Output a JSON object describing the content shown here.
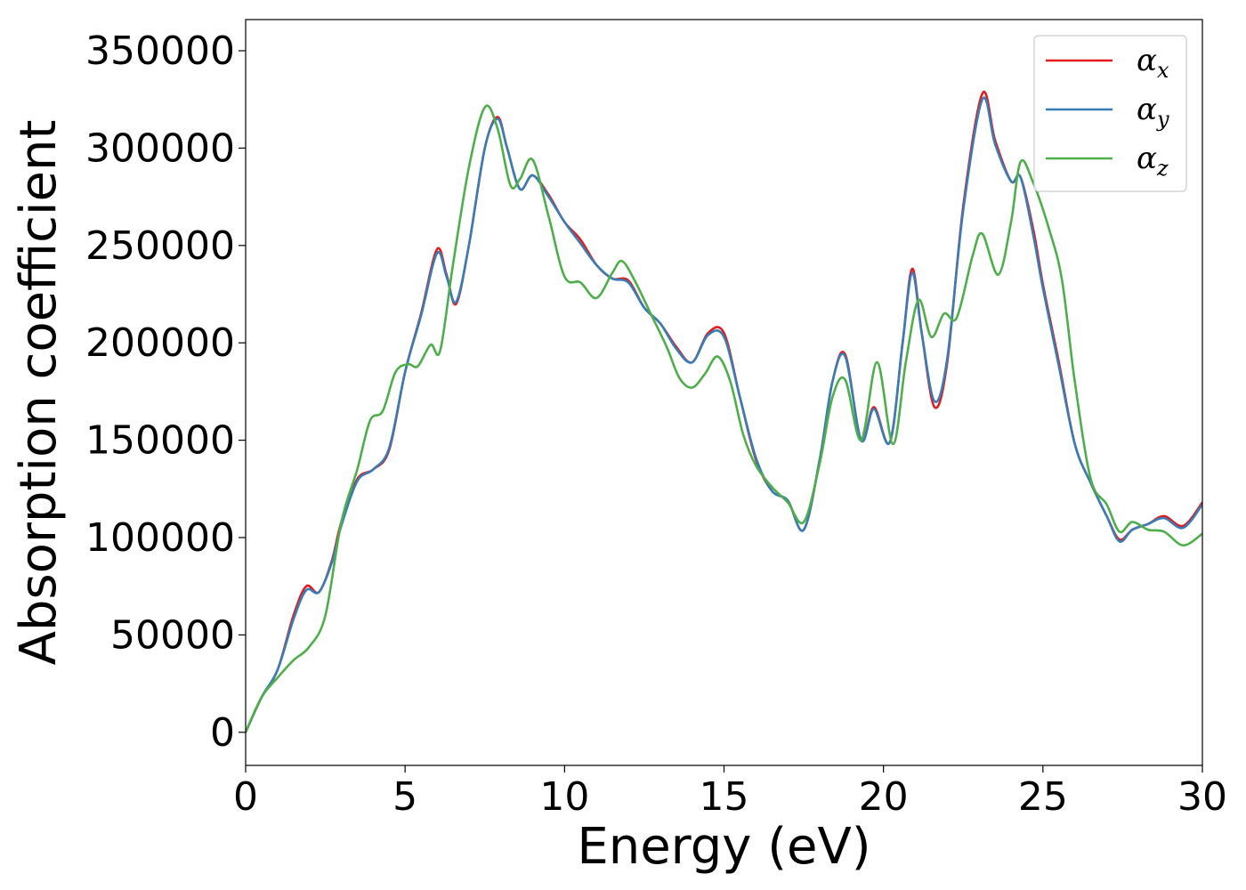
{
  "chart_data": {
    "type": "line",
    "title": "",
    "xlabel": "Energy (eV)",
    "ylabel": "Absorption coefficient",
    "xlim": [
      0,
      30
    ],
    "ylim": [
      -17000,
      366000
    ],
    "x_ticks": [
      0,
      5,
      10,
      15,
      20,
      25,
      30
    ],
    "y_ticks": [
      0,
      50000,
      100000,
      150000,
      200000,
      250000,
      300000,
      350000
    ],
    "grid": false,
    "legend_position": "top-right",
    "series": [
      {
        "name": "α",
        "subscript": "x",
        "color": "#e41a1c",
        "points": [
          [
            0,
            0
          ],
          [
            0.5,
            18000
          ],
          [
            1.0,
            32000
          ],
          [
            1.5,
            60000
          ],
          [
            1.9,
            75000
          ],
          [
            2.3,
            72000
          ],
          [
            2.7,
            88000
          ],
          [
            3.0,
            108000
          ],
          [
            3.5,
            130000
          ],
          [
            4.0,
            135000
          ],
          [
            4.5,
            145000
          ],
          [
            5.0,
            185000
          ],
          [
            5.5,
            215000
          ],
          [
            6.0,
            248000
          ],
          [
            6.3,
            235000
          ],
          [
            6.6,
            220000
          ],
          [
            7.0,
            250000
          ],
          [
            7.5,
            300000
          ],
          [
            7.9,
            316000
          ],
          [
            8.2,
            300000
          ],
          [
            8.6,
            279000
          ],
          [
            9.0,
            286000
          ],
          [
            9.5,
            276000
          ],
          [
            10.0,
            262000
          ],
          [
            10.5,
            253000
          ],
          [
            11.0,
            240000
          ],
          [
            11.5,
            233000
          ],
          [
            12.0,
            232000
          ],
          [
            12.5,
            218000
          ],
          [
            13.0,
            210000
          ],
          [
            13.5,
            198000
          ],
          [
            14.0,
            190000
          ],
          [
            14.5,
            205000
          ],
          [
            15.0,
            205000
          ],
          [
            15.5,
            172000
          ],
          [
            16.0,
            140000
          ],
          [
            16.5,
            124000
          ],
          [
            17.0,
            119000
          ],
          [
            17.5,
            104000
          ],
          [
            18.0,
            140000
          ],
          [
            18.4,
            180000
          ],
          [
            18.8,
            194000
          ],
          [
            19.3,
            150000
          ],
          [
            19.7,
            167000
          ],
          [
            20.2,
            149000
          ],
          [
            20.6,
            200000
          ],
          [
            20.9,
            238000
          ],
          [
            21.2,
            205000
          ],
          [
            21.6,
            167000
          ],
          [
            22.0,
            190000
          ],
          [
            22.5,
            270000
          ],
          [
            23.1,
            328000
          ],
          [
            23.5,
            304000
          ],
          [
            24.0,
            283000
          ],
          [
            24.3,
            285000
          ],
          [
            24.7,
            258000
          ],
          [
            25.0,
            230000
          ],
          [
            25.5,
            190000
          ],
          [
            26.0,
            148000
          ],
          [
            26.5,
            128000
          ],
          [
            27.0,
            111000
          ],
          [
            27.4,
            99000
          ],
          [
            27.8,
            104000
          ],
          [
            28.3,
            107000
          ],
          [
            28.8,
            111000
          ],
          [
            29.4,
            106000
          ],
          [
            30.0,
            118000
          ]
        ]
      },
      {
        "name": "α",
        "subscript": "y",
        "color": "#377eb8",
        "points": [
          [
            0,
            0
          ],
          [
            0.5,
            18000
          ],
          [
            1.0,
            32000
          ],
          [
            1.5,
            58000
          ],
          [
            1.9,
            73000
          ],
          [
            2.3,
            72000
          ],
          [
            2.7,
            87000
          ],
          [
            3.0,
            106000
          ],
          [
            3.5,
            129000
          ],
          [
            4.0,
            135000
          ],
          [
            4.5,
            146000
          ],
          [
            5.0,
            185000
          ],
          [
            5.5,
            214000
          ],
          [
            6.0,
            246000
          ],
          [
            6.3,
            234000
          ],
          [
            6.6,
            221000
          ],
          [
            7.0,
            250000
          ],
          [
            7.5,
            300000
          ],
          [
            7.9,
            315000
          ],
          [
            8.2,
            300000
          ],
          [
            8.6,
            279000
          ],
          [
            9.0,
            286000
          ],
          [
            9.5,
            275000
          ],
          [
            10.0,
            262000
          ],
          [
            10.5,
            251000
          ],
          [
            11.0,
            240000
          ],
          [
            11.5,
            233000
          ],
          [
            12.0,
            231000
          ],
          [
            12.5,
            218000
          ],
          [
            13.0,
            210000
          ],
          [
            13.5,
            197000
          ],
          [
            14.0,
            190000
          ],
          [
            14.5,
            204000
          ],
          [
            15.0,
            203000
          ],
          [
            15.5,
            172000
          ],
          [
            16.0,
            141000
          ],
          [
            16.5,
            124000
          ],
          [
            17.0,
            119000
          ],
          [
            17.5,
            104000
          ],
          [
            18.0,
            140000
          ],
          [
            18.4,
            180000
          ],
          [
            18.8,
            193000
          ],
          [
            19.3,
            150000
          ],
          [
            19.7,
            166000
          ],
          [
            20.2,
            149000
          ],
          [
            20.6,
            200000
          ],
          [
            20.9,
            236000
          ],
          [
            21.2,
            205000
          ],
          [
            21.6,
            170000
          ],
          [
            22.0,
            192000
          ],
          [
            22.5,
            268000
          ],
          [
            23.1,
            325000
          ],
          [
            23.5,
            302000
          ],
          [
            24.0,
            283000
          ],
          [
            24.3,
            285000
          ],
          [
            24.7,
            255000
          ],
          [
            25.0,
            228000
          ],
          [
            25.5,
            188000
          ],
          [
            26.0,
            148000
          ],
          [
            26.5,
            128000
          ],
          [
            27.0,
            111000
          ],
          [
            27.4,
            98000
          ],
          [
            27.8,
            104000
          ],
          [
            28.3,
            107000
          ],
          [
            28.8,
            110000
          ],
          [
            29.4,
            105000
          ],
          [
            30.0,
            117000
          ]
        ]
      },
      {
        "name": "α",
        "subscript": "z",
        "color": "#4daf4a",
        "points": [
          [
            0,
            0
          ],
          [
            0.5,
            18000
          ],
          [
            1.0,
            28000
          ],
          [
            1.5,
            37000
          ],
          [
            2.0,
            44000
          ],
          [
            2.5,
            60000
          ],
          [
            3.0,
            108000
          ],
          [
            3.5,
            135000
          ],
          [
            3.9,
            160000
          ],
          [
            4.3,
            165000
          ],
          [
            4.7,
            185000
          ],
          [
            5.1,
            189000
          ],
          [
            5.4,
            188000
          ],
          [
            5.8,
            199000
          ],
          [
            6.1,
            196000
          ],
          [
            6.5,
            240000
          ],
          [
            7.0,
            290000
          ],
          [
            7.5,
            321000
          ],
          [
            7.9,
            310000
          ],
          [
            8.3,
            281000
          ],
          [
            8.6,
            284000
          ],
          [
            9.0,
            294000
          ],
          [
            9.5,
            265000
          ],
          [
            10.0,
            234000
          ],
          [
            10.5,
            231000
          ],
          [
            11.0,
            223000
          ],
          [
            11.5,
            236000
          ],
          [
            11.8,
            242000
          ],
          [
            12.2,
            232000
          ],
          [
            12.7,
            215000
          ],
          [
            13.2,
            198000
          ],
          [
            13.6,
            182000
          ],
          [
            14.0,
            177000
          ],
          [
            14.4,
            184000
          ],
          [
            14.8,
            193000
          ],
          [
            15.2,
            180000
          ],
          [
            15.6,
            153000
          ],
          [
            16.0,
            137000
          ],
          [
            16.5,
            126000
          ],
          [
            17.0,
            118000
          ],
          [
            17.5,
            108000
          ],
          [
            18.0,
            138000
          ],
          [
            18.4,
            172000
          ],
          [
            18.8,
            181000
          ],
          [
            19.3,
            150000
          ],
          [
            19.8,
            190000
          ],
          [
            20.3,
            148000
          ],
          [
            20.7,
            190000
          ],
          [
            21.1,
            222000
          ],
          [
            21.5,
            203000
          ],
          [
            21.9,
            215000
          ],
          [
            22.3,
            213000
          ],
          [
            22.8,
            245000
          ],
          [
            23.1,
            256000
          ],
          [
            23.6,
            235000
          ],
          [
            24.0,
            262000
          ],
          [
            24.3,
            293000
          ],
          [
            24.7,
            282000
          ],
          [
            25.2,
            258000
          ],
          [
            25.6,
            232000
          ],
          [
            26.0,
            180000
          ],
          [
            26.5,
            130000
          ],
          [
            27.0,
            117000
          ],
          [
            27.4,
            103000
          ],
          [
            27.8,
            108000
          ],
          [
            28.3,
            104000
          ],
          [
            28.8,
            103000
          ],
          [
            29.4,
            96000
          ],
          [
            30.0,
            102000
          ]
        ]
      }
    ]
  }
}
